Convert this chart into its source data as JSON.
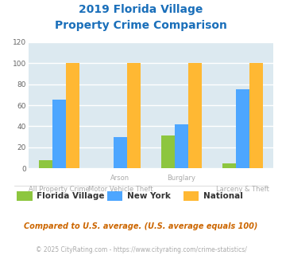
{
  "title_line1": "2019 Florida Village",
  "title_line2": "Property Crime Comparison",
  "title_color": "#1a6fba",
  "groups": [
    "Florida Village",
    "New York",
    "National"
  ],
  "colors": [
    "#8dc63f",
    "#4da6ff",
    "#ffb833"
  ],
  "florida_village": [
    8,
    0,
    31,
    5
  ],
  "new_york": [
    65,
    30,
    42,
    75
  ],
  "national": [
    100,
    100,
    100,
    100
  ],
  "ylim": [
    0,
    120
  ],
  "yticks": [
    0,
    20,
    40,
    60,
    80,
    100,
    120
  ],
  "bg_color": "#dce9f0",
  "grid_color": "#ffffff",
  "label_color": "#aaaaaa",
  "top_row_labels": {
    "0.5": "Arson",
    "2.5": "Burglary"
  },
  "bottom_row_labels": {
    "0": "All Property Crime",
    "1": "Motor Vehicle Theft",
    "3": "Larceny & Theft"
  },
  "footnote": "Compared to U.S. average. (U.S. average equals 100)",
  "footnote2": "© 2025 CityRating.com - https://www.cityrating.com/crime-statistics/",
  "footnote_color": "#cc6600",
  "footnote2_color": "#aaaaaa",
  "legend_text_color": "#333333"
}
